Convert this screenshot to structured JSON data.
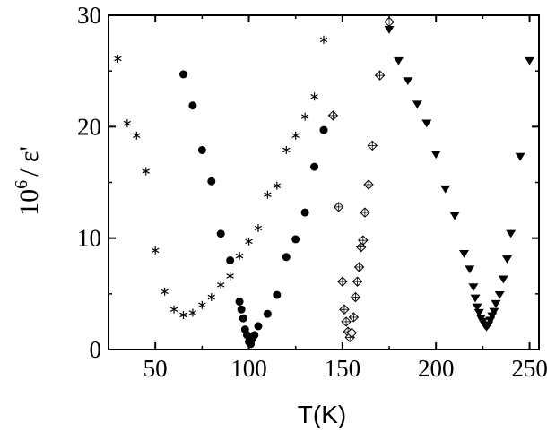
{
  "chart_data": {
    "type": "scatter",
    "xlabel": "T(K)",
    "ylabel": {
      "base": "10",
      "exponent": "6",
      "rest": "/ ε'"
    },
    "xlim": [
      25,
      255
    ],
    "ylim": [
      0,
      30
    ],
    "xticks": [
      50,
      100,
      150,
      200,
      250
    ],
    "yticks": [
      0,
      10,
      20,
      30
    ],
    "x_tick_labels": [
      "50",
      "100",
      "150",
      "200",
      "250"
    ],
    "y_tick_labels": [
      "0",
      "10",
      "20",
      "30"
    ],
    "grid": false,
    "legend": "none",
    "series": [
      {
        "marker": "asterisk",
        "points": [
          [
            30,
            26.1
          ],
          [
            35,
            20.3
          ],
          [
            40,
            19.2
          ],
          [
            45,
            16.0
          ],
          [
            50,
            8.9
          ],
          [
            55,
            5.2
          ],
          [
            60,
            3.6
          ],
          [
            65,
            3.1
          ],
          [
            70,
            3.3
          ],
          [
            75,
            4.0
          ],
          [
            80,
            4.7
          ],
          [
            85,
            5.8
          ],
          [
            90,
            6.6
          ],
          [
            95,
            8.4
          ],
          [
            100,
            9.7
          ],
          [
            105,
            10.9
          ],
          [
            110,
            13.9
          ],
          [
            115,
            14.7
          ],
          [
            120,
            17.9
          ],
          [
            125,
            19.2
          ],
          [
            130,
            20.9
          ],
          [
            135,
            22.7
          ],
          [
            140,
            27.8
          ]
        ]
      },
      {
        "marker": "circle-filled",
        "points": [
          [
            65,
            24.7
          ],
          [
            70,
            21.9
          ],
          [
            75,
            17.9
          ],
          [
            80,
            15.1
          ],
          [
            85,
            10.4
          ],
          [
            90,
            8.0
          ],
          [
            95,
            4.3
          ],
          [
            96,
            3.6
          ],
          [
            97,
            2.8
          ],
          [
            98,
            1.8
          ],
          [
            99,
            1.3
          ],
          [
            100,
            0.7
          ],
          [
            101,
            0.5
          ],
          [
            102,
            1.0
          ],
          [
            103,
            1.3
          ],
          [
            105,
            2.1
          ],
          [
            110,
            3.2
          ],
          [
            115,
            4.9
          ],
          [
            120,
            8.3
          ],
          [
            125,
            9.9
          ],
          [
            130,
            12.3
          ],
          [
            135,
            16.4
          ],
          [
            140,
            19.7
          ]
        ]
      },
      {
        "marker": "diamond-cross",
        "points": [
          [
            145,
            21.0
          ],
          [
            148,
            12.8
          ],
          [
            150,
            6.1
          ],
          [
            151,
            3.6
          ],
          [
            152,
            2.5
          ],
          [
            153,
            1.6
          ],
          [
            154,
            1.1
          ],
          [
            155,
            1.5
          ],
          [
            156,
            2.9
          ],
          [
            157,
            4.7
          ],
          [
            158,
            6.1
          ],
          [
            159,
            7.4
          ],
          [
            160,
            9.2
          ],
          [
            161,
            9.8
          ],
          [
            162,
            12.3
          ],
          [
            164,
            14.8
          ],
          [
            166,
            18.3
          ],
          [
            170,
            24.6
          ],
          [
            175,
            29.4
          ]
        ]
      },
      {
        "marker": "triangle-down-filled",
        "points": [
          [
            175,
            28.7
          ],
          [
            180,
            25.9
          ],
          [
            185,
            24.1
          ],
          [
            190,
            22.0
          ],
          [
            195,
            20.3
          ],
          [
            200,
            17.5
          ],
          [
            205,
            14.4
          ],
          [
            210,
            12.0
          ],
          [
            215,
            8.6
          ],
          [
            218,
            7.2
          ],
          [
            220,
            5.6
          ],
          [
            221,
            4.6
          ],
          [
            222,
            3.8
          ],
          [
            223,
            3.3
          ],
          [
            224,
            2.8
          ],
          [
            225,
            2.5
          ],
          [
            226,
            2.2
          ],
          [
            227,
            2.0
          ],
          [
            228,
            2.2
          ],
          [
            229,
            2.6
          ],
          [
            230,
            3.0
          ],
          [
            231,
            3.4
          ],
          [
            232,
            4.1
          ],
          [
            234,
            4.9
          ],
          [
            236,
            6.3
          ],
          [
            238,
            8.1
          ],
          [
            240,
            10.4
          ],
          [
            245,
            17.3
          ],
          [
            250,
            25.9
          ]
        ]
      }
    ]
  }
}
